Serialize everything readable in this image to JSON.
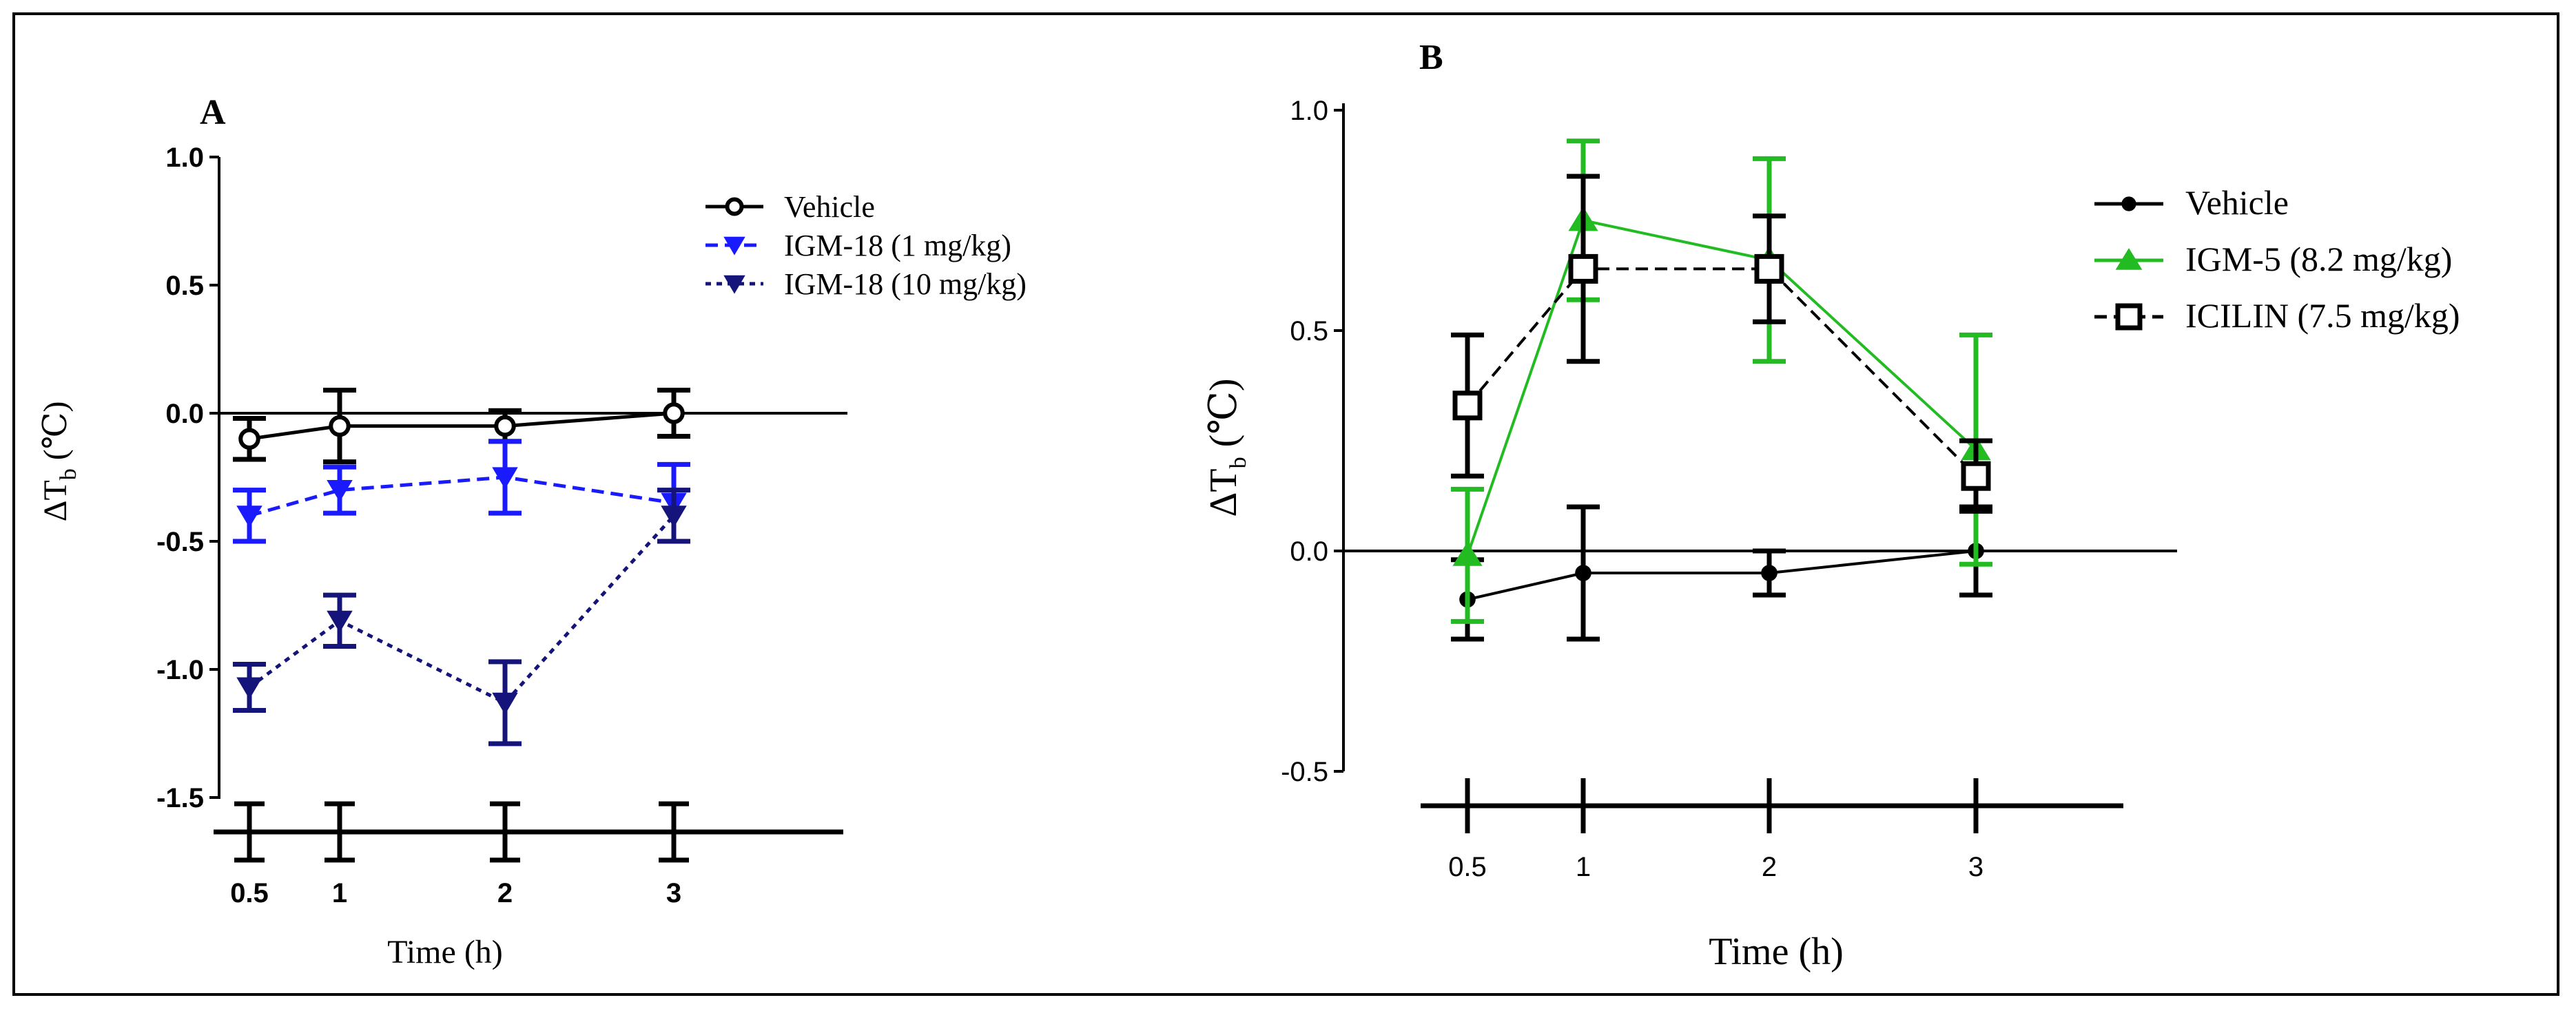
{
  "chart_data": [
    {
      "panel": "A",
      "type": "line",
      "xlabel": "Time (h)",
      "ylabel": "ΔTb (℃)",
      "ylabel_main": "ΔT",
      "ylabel_sub": "b",
      "ylabel_unit": "(℃)",
      "ylim": [
        -1.5,
        1.0
      ],
      "yticks": [
        {
          "value": 1.0,
          "label": "1.0"
        },
        {
          "value": 0.5,
          "label": "0.5"
        },
        {
          "value": 0.0,
          "label": "0.0"
        },
        {
          "value": -0.5,
          "label": "-0.5"
        },
        {
          "value": -1.0,
          "label": "-1.0"
        },
        {
          "value": -1.5,
          "label": "-1.5"
        }
      ],
      "xticks": [
        {
          "value": 0.5,
          "label": "0.5"
        },
        {
          "value": 1,
          "label": "1"
        },
        {
          "value": 2,
          "label": "2"
        },
        {
          "value": 3,
          "label": "3"
        }
      ],
      "x": [
        0.5,
        1,
        2,
        3
      ],
      "legend_position": "top-right",
      "series": [
        {
          "name": "Vehicle",
          "color": "#000000",
          "marker": "circle-open",
          "dash": "solid",
          "values": [
            -0.1,
            -0.05,
            -0.05,
            0.0
          ],
          "errors": [
            0.08,
            0.14,
            0.06,
            0.09
          ]
        },
        {
          "name": "IGM-18 (1 mg/kg)",
          "color": "#1a1aff",
          "marker": "triangle-down",
          "dash": "dashed",
          "values": [
            -0.4,
            -0.3,
            -0.25,
            -0.35
          ],
          "errors": [
            0.1,
            0.09,
            0.14,
            0.15
          ]
        },
        {
          "name": "IGM-18 (10 mg/kg)",
          "color": "#14147a",
          "marker": "triangle-down",
          "dash": "dotted",
          "values": [
            -1.07,
            -0.81,
            -1.13,
            -0.4
          ],
          "errors": [
            0.09,
            0.1,
            0.16,
            0.1
          ]
        }
      ],
      "baseline_axis_errors": [
        0.11,
        0.11,
        0.11,
        0.11
      ]
    },
    {
      "panel": "B",
      "type": "line",
      "xlabel": "Time (h)",
      "ylabel": "ΔTb (℃)",
      "ylabel_main": "ΔT",
      "ylabel_sub": "b",
      "ylabel_unit": "(℃)",
      "ylim": [
        -0.5,
        1.0
      ],
      "yticks": [
        {
          "value": 1.0,
          "label": "1.0"
        },
        {
          "value": 0.5,
          "label": "0.5"
        },
        {
          "value": 0.0,
          "label": "0.0"
        },
        {
          "value": -0.5,
          "label": "-0.5"
        }
      ],
      "xticks": [
        {
          "value": 0.5,
          "label": "0.5"
        },
        {
          "value": 1,
          "label": "1"
        },
        {
          "value": 2,
          "label": "2"
        },
        {
          "value": 3,
          "label": "3"
        }
      ],
      "x": [
        0.5,
        1,
        2,
        3
      ],
      "legend_position": "top-right",
      "series": [
        {
          "name": "Vehicle",
          "color": "#000000",
          "marker": "circle-filled",
          "dash": "solid",
          "values": [
            -0.11,
            -0.05,
            -0.05,
            0.0
          ],
          "errors": [
            0.09,
            0.15,
            0.05,
            0.1
          ]
        },
        {
          "name": "IGM-5 (8.2 mg/kg)",
          "color": "#22bb22",
          "marker": "triangle-up",
          "dash": "solid",
          "values": [
            -0.01,
            0.75,
            0.66,
            0.23
          ],
          "errors": [
            0.15,
            0.18,
            0.23,
            0.26
          ]
        },
        {
          "name": "ICILIN (7.5 mg/kg)",
          "color": "#000000",
          "marker": "square-open",
          "dash": "dashed",
          "values": [
            0.33,
            0.64,
            0.64,
            0.17
          ],
          "errors": [
            0.16,
            0.21,
            0.12,
            0.08
          ]
        }
      ]
    }
  ]
}
